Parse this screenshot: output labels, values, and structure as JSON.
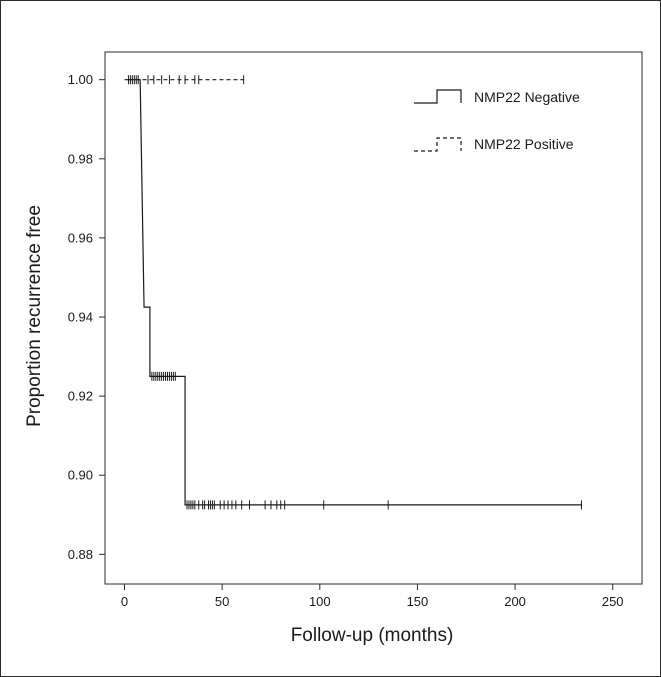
{
  "chart_data": {
    "type": "line",
    "subtype": "kaplan-meier step survival curve",
    "xlabel": "Follow-up (months)",
    "ylabel": "Proportion recurrence free",
    "xlim": [
      -10,
      265
    ],
    "ylim": [
      0.8725,
      1.007
    ],
    "xticks": [
      0,
      50,
      100,
      150,
      200,
      250
    ],
    "yticks": [
      1.0,
      0.98,
      0.96,
      0.94,
      0.92,
      0.9,
      0.88
    ],
    "ytick_labels": [
      "1.00",
      "0.98",
      "0.96",
      "0.94",
      "0.92",
      "0.90",
      "0.88"
    ],
    "legend_position": "top-right",
    "grid": false,
    "series": [
      {
        "name": "NMP22 Negative",
        "style": "solid",
        "color": "#1a1a1a",
        "steps": [
          [
            0,
            1.0
          ],
          [
            8,
            1.0
          ],
          [
            10,
            0.9425
          ],
          [
            13,
            0.9425
          ],
          [
            13,
            0.925
          ],
          [
            31,
            0.925
          ],
          [
            31,
            0.8925
          ],
          [
            234,
            0.8925
          ]
        ],
        "censored_x": [
          14,
          15,
          16,
          17,
          18,
          19,
          20,
          21,
          22,
          23,
          24,
          25,
          26,
          32,
          33,
          34,
          35,
          36,
          38,
          40,
          41,
          43,
          44,
          45,
          46,
          49,
          51,
          53,
          55,
          57,
          60,
          64,
          72,
          75,
          78,
          80,
          82,
          102,
          135,
          234
        ],
        "censored_y": [
          0.925,
          0.925,
          0.925,
          0.925,
          0.925,
          0.925,
          0.925,
          0.925,
          0.925,
          0.925,
          0.925,
          0.925,
          0.925,
          0.8925,
          0.8925,
          0.8925,
          0.8925,
          0.8925,
          0.8925,
          0.8925,
          0.8925,
          0.8925,
          0.8925,
          0.8925,
          0.8925,
          0.8925,
          0.8925,
          0.8925,
          0.8925,
          0.8925,
          0.8925,
          0.8925,
          0.8925,
          0.8925,
          0.8925,
          0.8925,
          0.8925,
          0.8925,
          0.8925,
          0.8925
        ]
      },
      {
        "name": "NMP22 Positive",
        "style": "dashed",
        "color": "#1a1a1a",
        "steps": [
          [
            2,
            1.0
          ],
          [
            61,
            1.0
          ]
        ],
        "censored_x": [
          2,
          3,
          4,
          5,
          6,
          7,
          12,
          15,
          19,
          23,
          28,
          31,
          36,
          38,
          61
        ],
        "censored_y": [
          1.0,
          1.0,
          1.0,
          1.0,
          1.0,
          1.0,
          1.0,
          1.0,
          1.0,
          1.0,
          1.0,
          1.0,
          1.0,
          1.0,
          1.0
        ]
      }
    ]
  }
}
